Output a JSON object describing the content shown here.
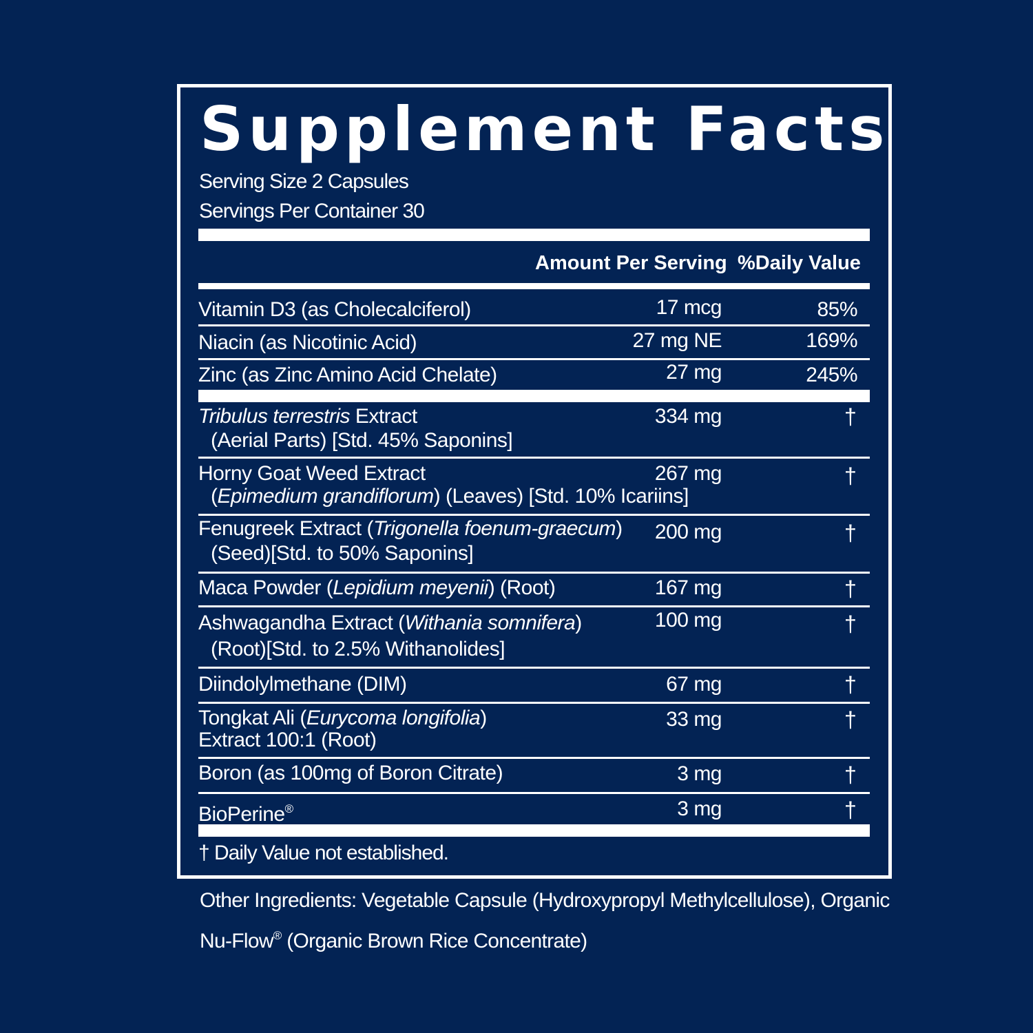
{
  "title": "Supplement Facts",
  "serving_size": "Serving Size 2 Capsules",
  "servings_per_container": "Servings Per Container 30",
  "header": {
    "amount": "Amount Per Serving",
    "daily_value": "%Daily Value"
  },
  "vitamins": [
    {
      "name": "Vitamin D3 (as Cholecalciferol)",
      "amount": "17 mcg",
      "dv": "85%"
    },
    {
      "name": "Niacin (as Nicotinic Acid)",
      "amount": "27 mg NE",
      "dv": "169%"
    },
    {
      "name": "Zinc (as Zinc Amino Acid Chelate)",
      "amount": "27 mg",
      "dv": "245%"
    }
  ],
  "ingredients": [
    {
      "latin": "Tribulus terrestris",
      "name_a": " Extract",
      "line2": "(Aerial Parts) [Std. 45% Saponins]",
      "amount": "334 mg",
      "dv": "†"
    },
    {
      "name_a": "Horny Goat Weed Extract",
      "line2_pre": "(",
      "line2_latin": "Epimedium grandiflorum",
      "line2": ") (Leaves) [Std. 10% Icariins]",
      "amount": "267 mg",
      "dv": "†"
    },
    {
      "name_a": "Fenugreek Extract (",
      "latin": "Trigonella foenum-graecum",
      "name_b": ")",
      "line2": "(Seed)[Std. to 50% Saponins]",
      "amount": "200 mg",
      "dv": "†"
    },
    {
      "name_a": "Maca Powder (",
      "latin": "Lepidium meyenii",
      "name_b": ") (Root)",
      "amount": "167 mg",
      "dv": "†"
    },
    {
      "name_a": "Ashwagandha Extract (",
      "latin": "Withania somnifera",
      "name_b": ")",
      "line2": "(Root)[Std. to 2.5% Withanolides]",
      "amount": "100 mg",
      "dv": "†"
    },
    {
      "name_a": "Diindolylmethane (DIM)",
      "amount": "67 mg",
      "dv": "†"
    },
    {
      "name_a": "Tongkat Ali (",
      "latin": "Eurycoma longifolia",
      "name_b": ")",
      "line2": "Extract 100:1 (Root)",
      "amount": "33 mg",
      "dv": "†"
    },
    {
      "name_a": "Boron (as 100mg of Boron Citrate)",
      "amount": "3 mg",
      "dv": "†"
    },
    {
      "name_a": "BioPerine",
      "reg": "®",
      "amount": "3 mg",
      "dv": "†"
    }
  ],
  "footnote": "† Daily Value not established.",
  "other_ingredients": {
    "line1": "Other Ingredients: Vegetable Capsule (Hydroxypropyl Methylcellulose), Organic",
    "line2_a": "Nu-Flow",
    "reg": "®",
    "line2_b": " (Organic Brown Rice Concentrate)"
  }
}
